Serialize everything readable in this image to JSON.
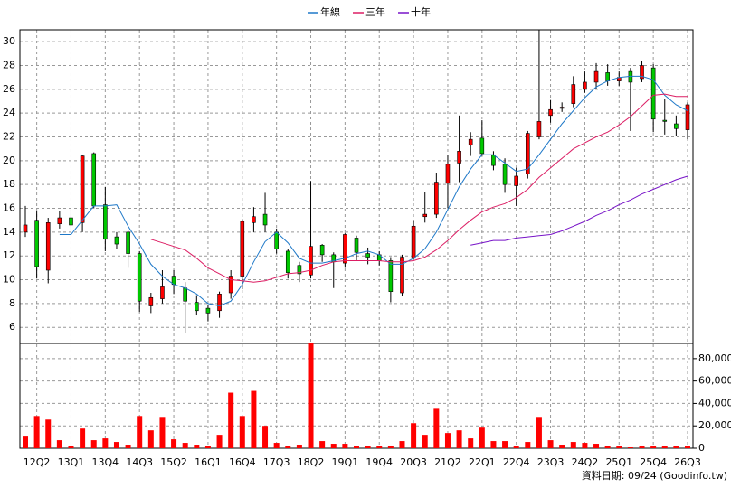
{
  "chart_data": {
    "type": "candlestick",
    "source": "資料日期: 09/24 (Goodinfo.tw)",
    "categories": [
      null,
      "12Q2",
      null,
      null,
      "13Q1",
      null,
      null,
      "13Q4",
      null,
      null,
      "14Q3",
      null,
      null,
      "15Q2",
      null,
      null,
      "16Q1",
      null,
      null,
      "16Q4",
      null,
      null,
      "17Q3",
      null,
      null,
      "18Q2",
      null,
      null,
      "19Q1",
      null,
      null,
      "19Q4",
      null,
      null,
      "20Q3",
      null,
      null,
      "21Q2",
      null,
      null,
      "22Q1",
      null,
      null,
      "22Q4",
      null,
      null,
      "23Q3",
      null,
      null,
      "24Q2",
      null,
      null,
      "25Q1",
      null,
      null,
      "25Q4",
      null,
      null,
      "26Q3"
    ],
    "open": [
      14,
      15,
      10.8,
      14.7,
      15.2,
      14.8,
      20.6,
      16.3,
      13.6,
      14,
      12.2,
      7.8,
      8.4,
      10.3,
      9.3,
      8.1,
      7.6,
      7.4,
      8.9,
      10.3,
      14.8,
      15.5,
      14,
      12.4,
      11.2,
      10.4,
      12.9,
      12.1,
      11.4,
      13.5,
      12.2,
      12.1,
      11.6,
      8.9,
      11.8,
      15.3,
      15.5,
      18.1,
      19.8,
      21.3,
      21.9,
      20.5,
      19.7,
      17.9,
      18.9,
      22,
      23.8,
      24.4,
      24.8,
      26,
      26.6,
      27.4,
      26.7,
      27.5,
      26.9,
      27.8,
      23.4,
      23.1,
      22.6
    ],
    "high": [
      16.2,
      15.8,
      15.2,
      15.8,
      15.9,
      20.5,
      20.7,
      17.8,
      14,
      14.2,
      12.4,
      8.9,
      10.8,
      10.8,
      9.8,
      8.7,
      7.9,
      9,
      10.8,
      15.1,
      16.1,
      17.3,
      14.3,
      12.6,
      11.5,
      18.3,
      13,
      12.3,
      13.9,
      13.7,
      12.7,
      12.4,
      11.9,
      12.1,
      15,
      17.4,
      19,
      20.5,
      23.8,
      22.4,
      23.4,
      20.8,
      20.2,
      19.4,
      22.5,
      31,
      25.1,
      24.9,
      27.1,
      27.5,
      28.2,
      28.1,
      27.5,
      27.8,
      28.4,
      28.1,
      25.2,
      23.8,
      24.9
    ],
    "low": [
      13.6,
      10.1,
      9.7,
      14.3,
      14.2,
      14,
      16,
      12.4,
      12.6,
      11,
      7.3,
      7.2,
      8,
      8.8,
      5.5,
      7,
      6.5,
      6.8,
      8.4,
      9.2,
      14,
      14,
      12.2,
      10.1,
      9.8,
      10.1,
      11.5,
      9.3,
      11,
      11.6,
      11.3,
      11.2,
      8.1,
      8.6,
      11.7,
      14.8,
      15.2,
      16,
      18.2,
      20.4,
      20.4,
      19.2,
      17.3,
      16.2,
      18.5,
      21.8,
      23.2,
      24.1,
      24.5,
      25.7,
      26,
      26.3,
      26.3,
      22.5,
      26.6,
      22.4,
      22.2,
      22.1,
      21.8
    ],
    "close": [
      14.6,
      11.1,
      14.8,
      15.2,
      14.6,
      20.4,
      16.2,
      13.4,
      13,
      12.2,
      8.2,
      8.5,
      9.4,
      9.6,
      8.2,
      7.4,
      7.2,
      8.8,
      10.3,
      14.9,
      15.3,
      14.6,
      12.6,
      10.6,
      10.5,
      12.8,
      12.1,
      11.5,
      13.8,
      12.3,
      11.9,
      11.6,
      9,
      11.9,
      14.5,
      15.5,
      18.2,
      19.7,
      20.8,
      21.8,
      20.6,
      19.6,
      18,
      18.7,
      22.3,
      23.3,
      24.3,
      24.5,
      26.4,
      26.6,
      27.5,
      26.7,
      27,
      26.6,
      28,
      23.5,
      23.3,
      22.7,
      24.7
    ],
    "volume": [
      10400,
      28800,
      25600,
      7200,
      2400,
      17600,
      7200,
      8800,
      5600,
      3200,
      28800,
      16000,
      28000,
      8000,
      4800,
      3200,
      2400,
      12000,
      49600,
      28800,
      51200,
      20000,
      4800,
      2400,
      3200,
      93600,
      6400,
      4000,
      4000,
      1600,
      1600,
      2400,
      2400,
      6400,
      22400,
      12000,
      35200,
      13600,
      16000,
      8800,
      18400,
      6400,
      6400,
      1600,
      5600,
      28000,
      7200,
      3200,
      5600,
      4800,
      4000,
      2400,
      1600,
      800,
      1600,
      1600,
      1600,
      1600,
      1600
    ],
    "series": [
      {
        "name": "年線",
        "color": "#1e78c8",
        "values": [
          null,
          null,
          null,
          13.8,
          13.8,
          15,
          16.2,
          16.2,
          16.3,
          14.5,
          13,
          11.3,
          10.3,
          9.6,
          9.3,
          8.8,
          8,
          7.8,
          8.2,
          9.6,
          11.5,
          13.2,
          14,
          13.1,
          11.8,
          11.4,
          11.4,
          11.6,
          11.8,
          12.2,
          12.4,
          12.1,
          11.3,
          11.3,
          11.8,
          12.6,
          14,
          15.9,
          17.8,
          19.3,
          20.5,
          20.5,
          19.8,
          19.1,
          19.3,
          20.5,
          21.8,
          23.1,
          24.2,
          25.3,
          26.2,
          26.7,
          27,
          27.1,
          27.1,
          26.8,
          25.5,
          24.7,
          24.2
        ]
      },
      {
        "name": "三年",
        "color": "#dc1e64",
        "values": [
          null,
          null,
          null,
          null,
          null,
          null,
          null,
          null,
          null,
          null,
          null,
          13.4,
          13.1,
          12.8,
          12.5,
          11.8,
          11,
          10.5,
          10,
          9.9,
          9.8,
          9.9,
          10.2,
          10.5,
          10.6,
          10.8,
          11.2,
          11.5,
          11.6,
          11.6,
          11.6,
          11.6,
          11.5,
          11.5,
          11.6,
          11.9,
          12.5,
          13.3,
          14.2,
          15,
          15.7,
          16.1,
          16.4,
          16.9,
          17.6,
          18.6,
          19.4,
          20.2,
          21,
          21.5,
          22,
          22.4,
          23,
          23.7,
          24.6,
          25.5,
          25.6,
          25.4,
          25.4
        ]
      },
      {
        "name": "十年",
        "color": "#7814c8",
        "values": [
          null,
          null,
          null,
          null,
          null,
          null,
          null,
          null,
          null,
          null,
          null,
          null,
          null,
          null,
          null,
          null,
          null,
          null,
          null,
          null,
          null,
          null,
          null,
          null,
          null,
          null,
          null,
          null,
          null,
          null,
          null,
          null,
          null,
          null,
          null,
          null,
          null,
          null,
          null,
          12.9,
          13.1,
          13.3,
          13.3,
          13.5,
          13.6,
          13.7,
          13.8,
          14.1,
          14.5,
          14.9,
          15.4,
          15.8,
          16.3,
          16.7,
          17.2,
          17.6,
          18,
          18.4,
          18.7
        ]
      }
    ],
    "up_color": "#ff0000",
    "down_color": "#00c800",
    "volume_color": "#ff0000",
    "ylim": [
      4.8,
      31
    ],
    "yticks": [
      6,
      8,
      10,
      12,
      14,
      16,
      18,
      20,
      22,
      24,
      26,
      28,
      30
    ],
    "volume_ylim": [
      0,
      93600
    ],
    "volume_yticks": [
      {
        "value": 0,
        "label": "0"
      },
      {
        "value": 20000,
        "label": "20,000"
      },
      {
        "value": 40000,
        "label": "40,000"
      },
      {
        "value": 60000,
        "label": "60,000"
      },
      {
        "value": 80000,
        "label": "80,000"
      }
    ],
    "grid": true
  }
}
